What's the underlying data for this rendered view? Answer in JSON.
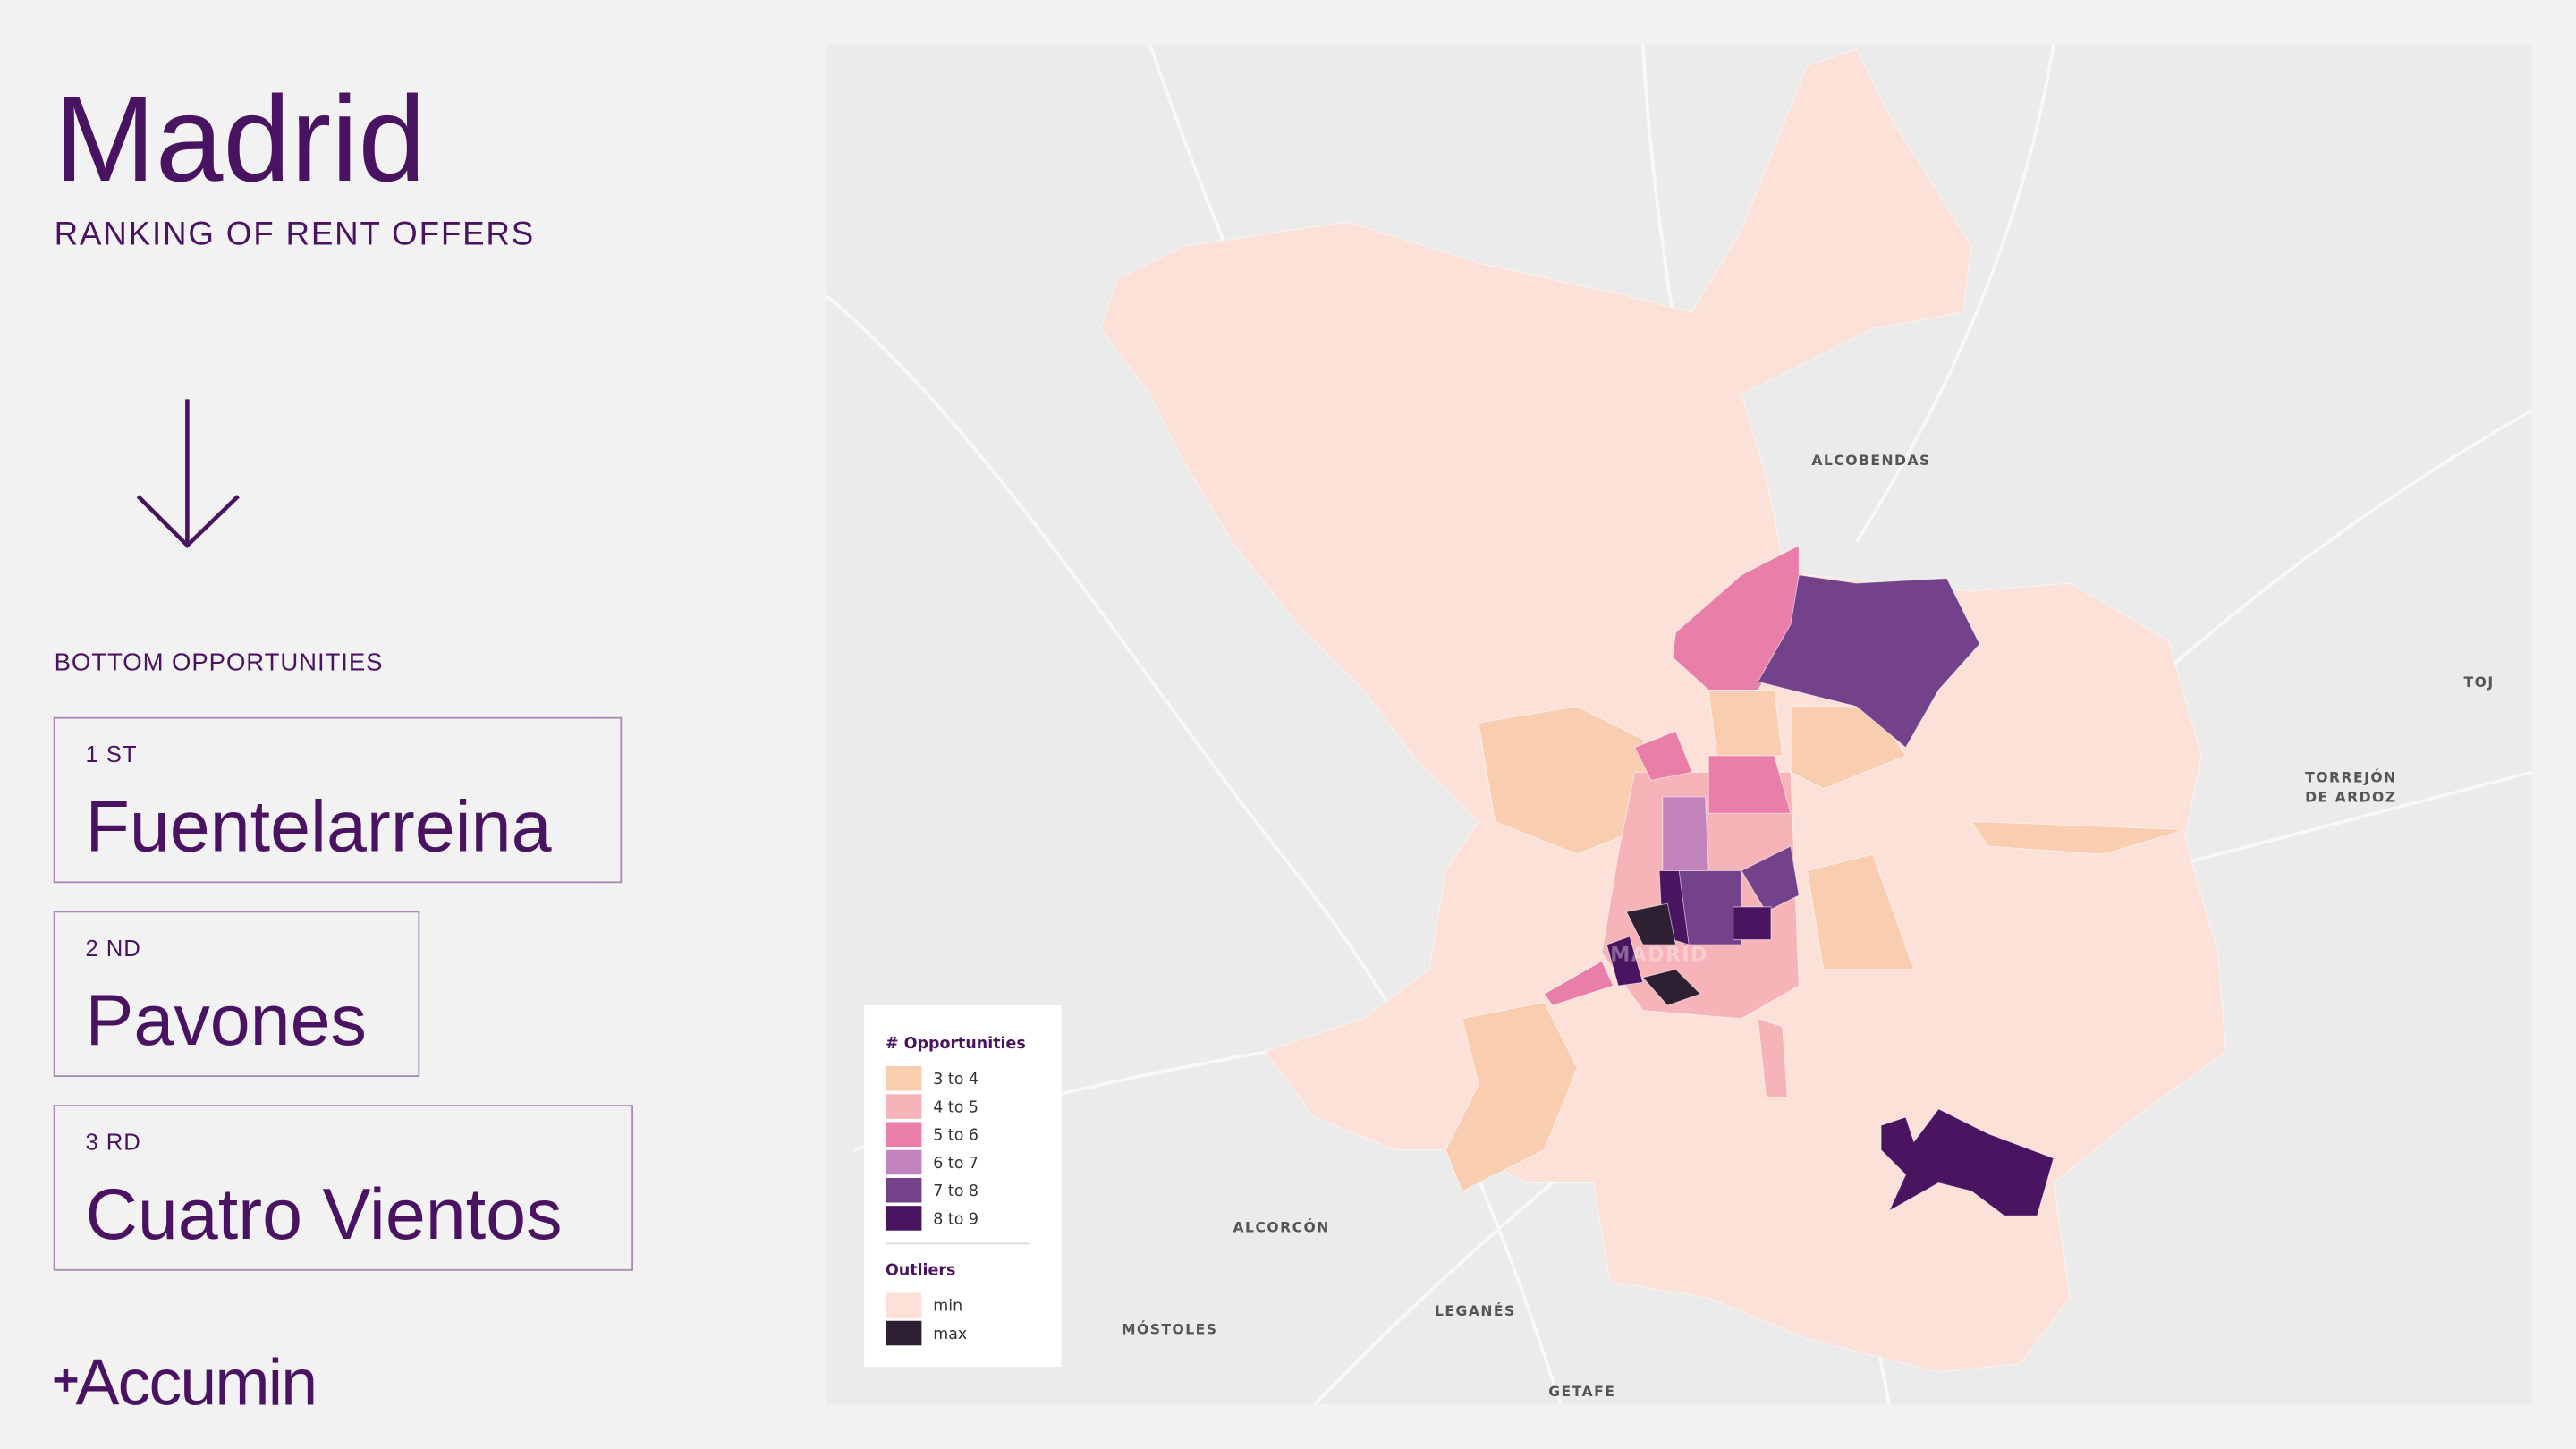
{
  "header": {
    "title": "Madrid",
    "subtitle": "RANKING OF RENT OFFERS"
  },
  "section": {
    "title": "BOTTOM OPPORTUNITIES"
  },
  "ranking": [
    {
      "rank": "1 ST",
      "name": "Fuentelarreina"
    },
    {
      "rank": "2 ND",
      "name": "Pavones"
    },
    {
      "rank": "3 RD",
      "name": "Cuatro Vientos"
    }
  ],
  "legend": {
    "title": "# Opportunities",
    "items": [
      {
        "label": "3 to 4",
        "color": "#f9cdb0"
      },
      {
        "label": "4 to 5",
        "color": "#f6b3b8"
      },
      {
        "label": "5 to 6",
        "color": "#e97fa8"
      },
      {
        "label": "6 to 7",
        "color": "#c383bd"
      },
      {
        "label": "7 to 8",
        "color": "#74428a"
      },
      {
        "label": "8 to 9",
        "color": "#4b1460"
      }
    ],
    "outliers_title": "Outliers",
    "outliers": [
      {
        "label": "min",
        "color": "#fbe1d8"
      },
      {
        "label": "max",
        "color": "#2e1f33"
      }
    ]
  },
  "map_labels": [
    "ALCOBENDAS",
    "TOJ",
    "TORREJÓN",
    "DE ARDOZ",
    "ALCORCÓN",
    "MÓSTOLES",
    "LEGANÉS",
    "GETAFE",
    "MADRID"
  ],
  "logo": "Accumin"
}
